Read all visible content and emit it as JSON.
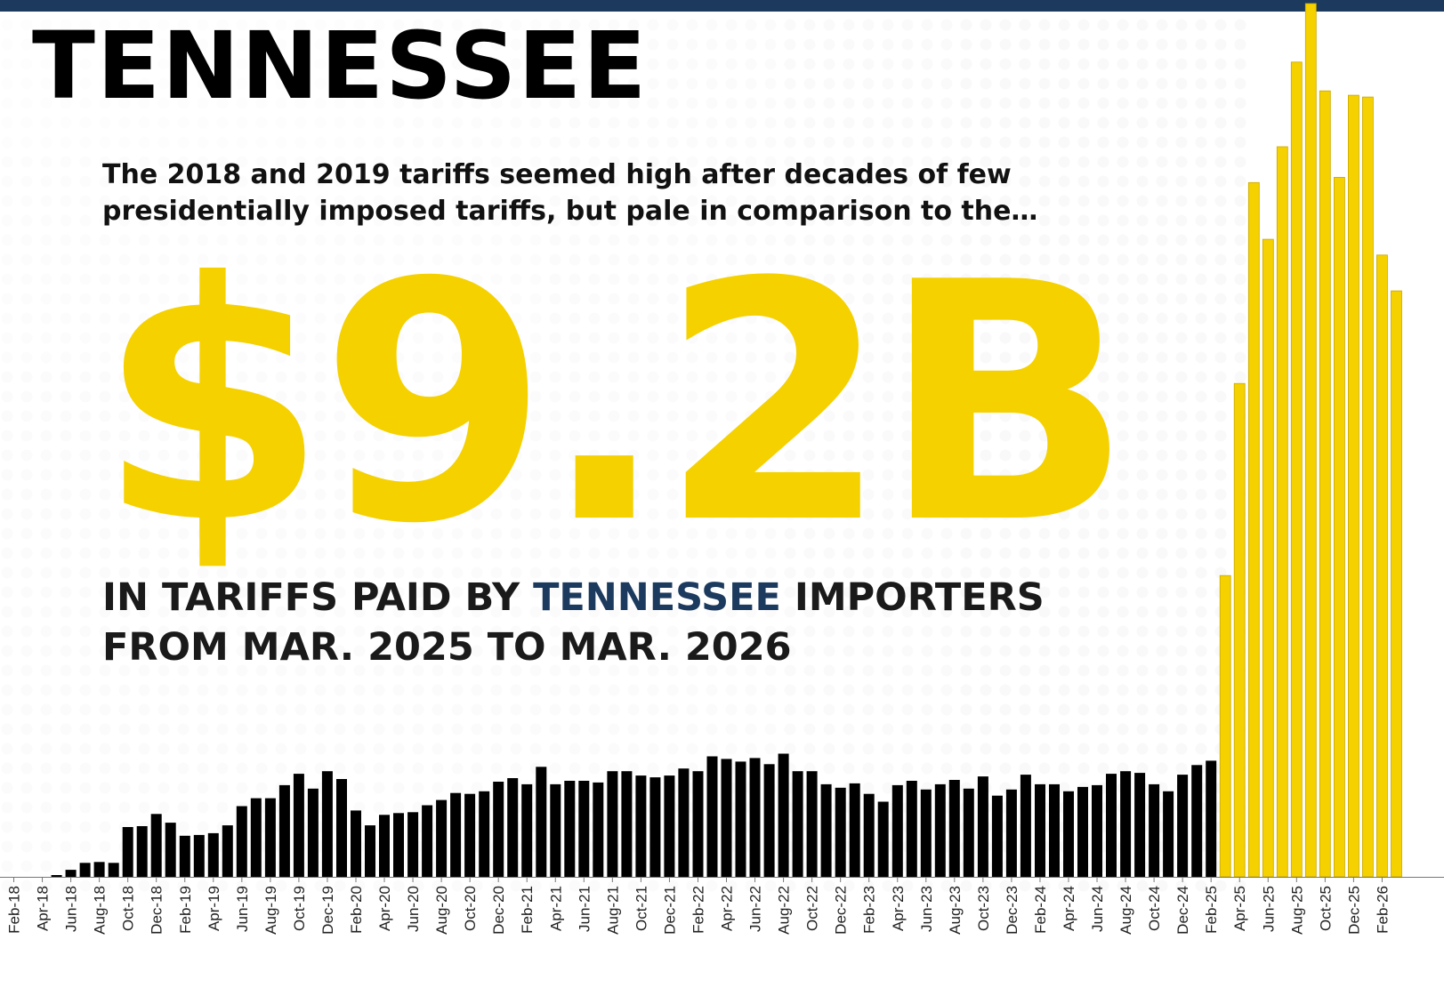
{
  "header": {
    "title": "TENNESSEE",
    "intro_line1": "The 2018 and 2019 tariffs seemed high after decades of few",
    "intro_line2": "presidentially imposed tariffs, but pale in comparison to the…",
    "big_number": "$9.2B",
    "caption_pre": "IN TARIFFS PAID BY ",
    "caption_state": "TENNESSEE",
    "caption_post": " IMPORTERS",
    "caption_line2": "FROM MAR. 2025 TO MAR. 2026"
  },
  "colors": {
    "bar_before": "#000000",
    "bar_after": "#f5d100",
    "accent": "#1c3a5e",
    "top_bar": "#1c3a5e"
  },
  "chart_data": {
    "type": "bar",
    "title": "",
    "xlabel": "",
    "ylabel": "",
    "grid": false,
    "legend": "none",
    "ylim": [
      0,
      100
    ],
    "categories": [
      "Feb-18",
      "Mar-18",
      "Apr-18",
      "May-18",
      "Jun-18",
      "Jul-18",
      "Aug-18",
      "Sep-18",
      "Oct-18",
      "Nov-18",
      "Dec-18",
      "Jan-19",
      "Feb-19",
      "Mar-19",
      "Apr-19",
      "May-19",
      "Jun-19",
      "Jul-19",
      "Aug-19",
      "Sep-19",
      "Oct-19",
      "Nov-19",
      "Dec-19",
      "Jan-20",
      "Feb-20",
      "Mar-20",
      "Apr-20",
      "May-20",
      "Jun-20",
      "Jul-20",
      "Aug-20",
      "Sep-20",
      "Oct-20",
      "Nov-20",
      "Dec-20",
      "Jan-21",
      "Feb-21",
      "Mar-21",
      "Apr-21",
      "May-21",
      "Jun-21",
      "Jul-21",
      "Aug-21",
      "Sep-21",
      "Oct-21",
      "Nov-21",
      "Dec-21",
      "Jan-22",
      "Feb-22",
      "Mar-22",
      "Apr-22",
      "May-22",
      "Jun-22",
      "Jul-22",
      "Aug-22",
      "Sep-22",
      "Oct-22",
      "Nov-22",
      "Dec-22",
      "Jan-23",
      "Feb-23",
      "Mar-23",
      "Apr-23",
      "May-23",
      "Jun-23",
      "Jul-23",
      "Aug-23",
      "Sep-23",
      "Oct-23",
      "Nov-23",
      "Dec-23",
      "Jan-24",
      "Feb-24",
      "Mar-24",
      "Apr-24",
      "May-24",
      "Jun-24",
      "Jul-24",
      "Aug-24",
      "Sep-24",
      "Oct-24",
      "Nov-24",
      "Dec-24",
      "Jan-25",
      "Feb-25",
      "Mar-25",
      "Apr-25",
      "May-25",
      "Jun-25",
      "Jul-25",
      "Aug-25",
      "Sep-25",
      "Oct-25",
      "Nov-25",
      "Dec-25",
      "Jan-26",
      "Feb-26",
      "Mar-26"
    ],
    "values": [
      0,
      0,
      0,
      0.2,
      0.8,
      1.6,
      1.7,
      1.6,
      5.7,
      5.8,
      7.2,
      6.2,
      4.7,
      4.8,
      5.0,
      5.9,
      8.1,
      9.0,
      9.0,
      10.5,
      11.8,
      10.1,
      12.1,
      11.2,
      7.6,
      5.9,
      7.1,
      7.3,
      7.4,
      8.2,
      8.8,
      9.6,
      9.5,
      9.8,
      10.9,
      11.3,
      10.6,
      12.6,
      10.6,
      11.0,
      11.0,
      10.8,
      12.1,
      12.1,
      11.6,
      11.4,
      11.6,
      12.4,
      12.1,
      13.8,
      13.5,
      13.2,
      13.6,
      12.9,
      14.1,
      12.1,
      12.1,
      10.6,
      10.2,
      10.7,
      9.5,
      8.6,
      10.5,
      11.0,
      10.0,
      10.6,
      11.1,
      10.1,
      11.5,
      9.3,
      10.0,
      11.7,
      10.6,
      10.6,
      9.8,
      10.3,
      10.5,
      11.8,
      12.1,
      11.9,
      10.6,
      9.8,
      11.7,
      12.8,
      13.3,
      34.5,
      56.5,
      79.5,
      73.0,
      83.6,
      93.3,
      100.0,
      90.0,
      80.1,
      89.5,
      89.3,
      71.2,
      67.1
    ],
    "tick_labels": [
      "Feb-18",
      "Apr-18",
      "Jun-18",
      "Aug-18",
      "Oct-18",
      "Dec-18",
      "Feb-19",
      "Apr-19",
      "Jun-19",
      "Aug-19",
      "Oct-19",
      "Dec-19",
      "Feb-20",
      "Apr-20",
      "Jun-20",
      "Aug-20",
      "Oct-20",
      "Dec-20",
      "Feb-21",
      "Apr-21",
      "Jun-21",
      "Aug-21",
      "Oct-21",
      "Dec-21",
      "Feb-22",
      "Apr-22",
      "Jun-22",
      "Aug-22",
      "Oct-22",
      "Dec-22",
      "Feb-23",
      "Apr-23",
      "Jun-23",
      "Aug-23",
      "Oct-23",
      "Dec-23",
      "Feb-24",
      "Apr-24",
      "Jun-24",
      "Aug-24",
      "Oct-24",
      "Dec-24",
      "Feb-25",
      "Apr-25",
      "Jun-25",
      "Aug-25",
      "Oct-25",
      "Dec-25",
      "Feb-26"
    ],
    "highlight_start": "Mar-25"
  }
}
